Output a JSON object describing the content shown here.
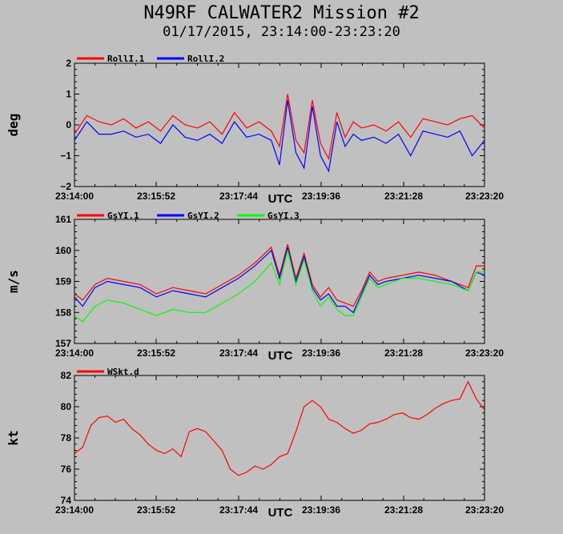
{
  "title": "N49RF CALWATER2 Mission #2",
  "subtitle": "01/17/2015, 23:14:00-23:23:20",
  "chart_data": [
    {
      "type": "line",
      "ylabel": "deg",
      "xlabel": "UTC",
      "ylim": [
        -2,
        2
      ],
      "yticks": [
        "2",
        "1",
        "0",
        "−1",
        "−2"
      ],
      "xticks": [
        "23:14:00",
        "23:15:52",
        "23:17:44",
        "23:19:36",
        "23:21:28",
        "23:23:20"
      ],
      "x": [
        0,
        0.03,
        0.06,
        0.09,
        0.12,
        0.15,
        0.18,
        0.21,
        0.24,
        0.27,
        0.3,
        0.33,
        0.36,
        0.39,
        0.42,
        0.45,
        0.48,
        0.5,
        0.52,
        0.54,
        0.56,
        0.58,
        0.6,
        0.62,
        0.64,
        0.66,
        0.68,
        0.7,
        0.73,
        0.76,
        0.79,
        0.82,
        0.85,
        0.88,
        0.91,
        0.94,
        0.97,
        1.0
      ],
      "series": [
        {
          "name": "RollI.1",
          "color": "#ff0000",
          "values": [
            -0.3,
            0.3,
            0.1,
            0.0,
            0.2,
            -0.1,
            0.1,
            -0.2,
            0.3,
            0.0,
            -0.1,
            0.1,
            -0.3,
            0.4,
            -0.1,
            0.1,
            -0.2,
            -0.7,
            1.0,
            -0.5,
            -0.9,
            0.8,
            -0.6,
            -1.1,
            0.4,
            -0.4,
            0.1,
            -0.1,
            0.0,
            -0.2,
            0.1,
            -0.4,
            0.2,
            0.1,
            0.0,
            0.2,
            0.3,
            -0.1
          ]
        },
        {
          "name": "RollI.2",
          "color": "#0000ff",
          "values": [
            -0.5,
            0.1,
            -0.3,
            -0.3,
            -0.2,
            -0.4,
            -0.3,
            -0.6,
            0.0,
            -0.4,
            -0.5,
            -0.3,
            -0.6,
            0.1,
            -0.4,
            -0.3,
            -0.5,
            -1.3,
            0.8,
            -0.9,
            -1.4,
            0.6,
            -1.0,
            -1.5,
            0.1,
            -0.7,
            -0.3,
            -0.5,
            -0.4,
            -0.6,
            -0.3,
            -1.0,
            -0.2,
            -0.3,
            -0.4,
            -0.2,
            -1.0,
            -0.5
          ]
        }
      ]
    },
    {
      "type": "line",
      "ylabel": "m/s",
      "xlabel": "UTC",
      "ylim": [
        157,
        161
      ],
      "yticks": [
        "161",
        "160",
        "159",
        "158",
        "157"
      ],
      "xticks": [
        "23:14:00",
        "23:15:52",
        "23:17:44",
        "23:19:36",
        "23:21:28",
        "23:23:20"
      ],
      "x": [
        0,
        0.02,
        0.05,
        0.08,
        0.12,
        0.16,
        0.2,
        0.24,
        0.28,
        0.32,
        0.36,
        0.4,
        0.44,
        0.48,
        0.5,
        0.52,
        0.54,
        0.56,
        0.58,
        0.6,
        0.62,
        0.64,
        0.66,
        0.68,
        0.7,
        0.72,
        0.74,
        0.76,
        0.8,
        0.84,
        0.88,
        0.92,
        0.96,
        0.98,
        1.0
      ],
      "series": [
        {
          "name": "GsYI.1",
          "color": "#ff0000",
          "values": [
            158.6,
            158.4,
            158.9,
            159.1,
            159.0,
            158.9,
            158.6,
            158.8,
            158.7,
            158.6,
            158.9,
            159.2,
            159.6,
            160.1,
            159.2,
            160.2,
            159.1,
            159.9,
            158.9,
            158.5,
            158.8,
            158.4,
            158.3,
            158.2,
            158.7,
            159.3,
            159.0,
            159.1,
            159.2,
            159.3,
            159.2,
            159.0,
            158.8,
            159.5,
            159.5
          ]
        },
        {
          "name": "GsYI.2",
          "color": "#0000ff",
          "values": [
            158.5,
            158.2,
            158.8,
            159.0,
            158.9,
            158.8,
            158.5,
            158.7,
            158.6,
            158.5,
            158.8,
            159.1,
            159.5,
            160.0,
            159.1,
            160.1,
            159.0,
            159.8,
            158.8,
            158.4,
            158.6,
            158.2,
            158.2,
            158.0,
            158.6,
            159.2,
            158.9,
            159.0,
            159.1,
            159.2,
            159.1,
            159.0,
            158.7,
            159.3,
            159.2
          ]
        },
        {
          "name": "GsYI.3",
          "color": "#00ff00",
          "values": [
            157.9,
            157.7,
            158.2,
            158.4,
            158.3,
            158.1,
            157.9,
            158.1,
            158.0,
            158.0,
            158.3,
            158.6,
            159.0,
            159.6,
            158.9,
            160.0,
            158.9,
            159.7,
            158.7,
            158.2,
            158.5,
            158.1,
            157.9,
            157.9,
            158.5,
            159.1,
            158.8,
            158.9,
            159.1,
            159.1,
            159.0,
            158.9,
            158.7,
            159.3,
            159.3
          ]
        }
      ]
    },
    {
      "type": "line",
      "ylabel": "kt",
      "xlabel": "UTC",
      "ylim": [
        74,
        82
      ],
      "yticks": [
        "82",
        "80",
        "78",
        "76",
        "74"
      ],
      "xticks": [
        "23:14:00",
        "23:15:52",
        "23:17:44",
        "23:19:36",
        "23:21:28",
        "23:23:20"
      ],
      "x": [
        0,
        0.02,
        0.04,
        0.06,
        0.08,
        0.1,
        0.12,
        0.14,
        0.16,
        0.18,
        0.2,
        0.22,
        0.24,
        0.26,
        0.28,
        0.3,
        0.32,
        0.34,
        0.36,
        0.38,
        0.4,
        0.42,
        0.44,
        0.46,
        0.48,
        0.5,
        0.52,
        0.54,
        0.56,
        0.58,
        0.6,
        0.62,
        0.64,
        0.66,
        0.68,
        0.7,
        0.72,
        0.74,
        0.76,
        0.78,
        0.8,
        0.82,
        0.84,
        0.86,
        0.88,
        0.9,
        0.92,
        0.94,
        0.96,
        0.98,
        1.0
      ],
      "series": [
        {
          "name": "WSkt.d",
          "color": "#ff0000",
          "values": [
            77.0,
            77.4,
            78.8,
            79.3,
            79.4,
            79.0,
            79.2,
            78.6,
            78.2,
            77.6,
            77.2,
            77.0,
            77.3,
            76.8,
            78.4,
            78.6,
            78.4,
            77.8,
            77.2,
            76.0,
            75.6,
            75.8,
            76.2,
            76.0,
            76.3,
            76.8,
            77.0,
            78.4,
            80.0,
            80.4,
            80.0,
            79.2,
            79.0,
            78.6,
            78.3,
            78.5,
            78.9,
            79.0,
            79.2,
            79.5,
            79.6,
            79.3,
            79.2,
            79.5,
            79.9,
            80.2,
            80.4,
            80.5,
            81.6,
            80.5,
            79.8
          ]
        }
      ]
    }
  ]
}
